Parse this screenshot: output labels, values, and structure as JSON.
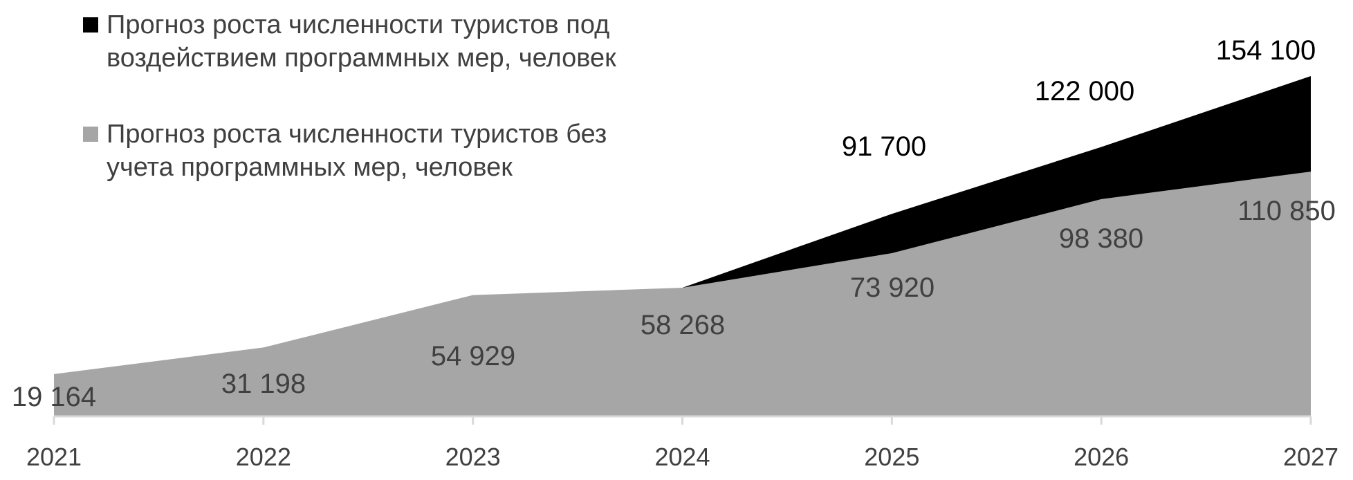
{
  "chart_data": {
    "type": "area",
    "stacked": false,
    "x": [
      "2021",
      "2022",
      "2023",
      "2024",
      "2025",
      "2026",
      "2027"
    ],
    "series": [
      {
        "name": "Прогноз роста численности туристов под воздействием программных мер, человек",
        "color": "#000000",
        "values": [
          null,
          null,
          null,
          58268,
          91700,
          122000,
          154100
        ],
        "labels": [
          "",
          "",
          "",
          "",
          "91 700",
          "122 000",
          "154 100"
        ]
      },
      {
        "name": "Прогноз роста численности туристов без учета программных мер, человек",
        "color": "#a6a6a6",
        "values": [
          19164,
          31198,
          54929,
          58268,
          73920,
          98380,
          110850
        ],
        "labels": [
          "19 164",
          "31 198",
          "54 929",
          "58 268",
          "73 920",
          "98 380",
          "110 850"
        ]
      }
    ],
    "ylim": [
      0,
      154100
    ],
    "grid": false,
    "legend_position": "top-left",
    "title": "",
    "xlabel": "",
    "ylabel": ""
  },
  "legend": {
    "items": [
      {
        "text": "Прогноз роста численности туристов под\nвоздействием программных мер, человек",
        "color": "#000000"
      },
      {
        "text": "Прогноз роста численности туристов без\nучета программных мер, человек",
        "color": "#a6a6a6"
      }
    ]
  },
  "colors": {
    "axis": "#d9d9d9",
    "text": "#404040",
    "label_dark": "#000000"
  }
}
